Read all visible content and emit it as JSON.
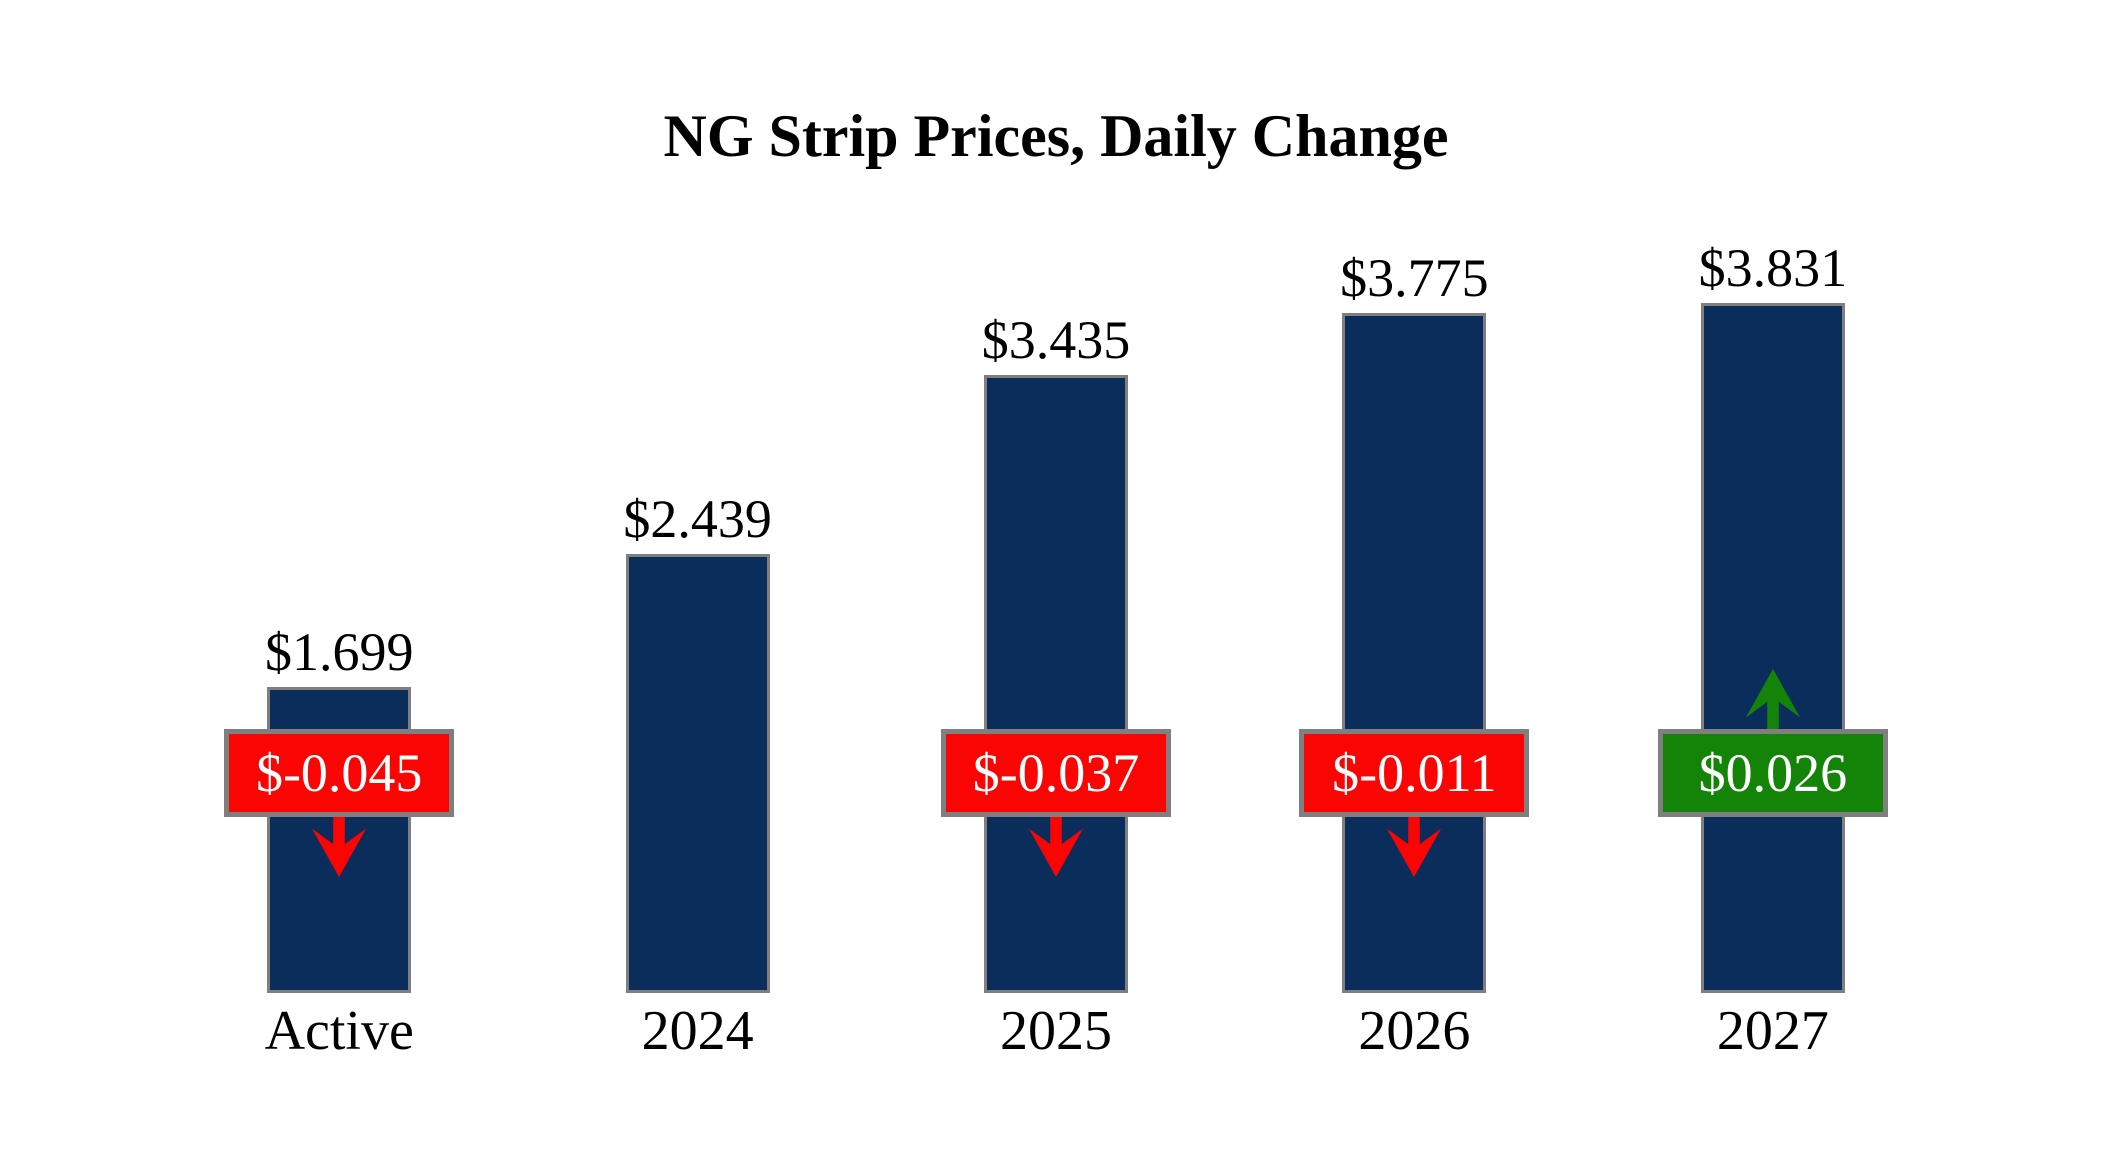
{
  "colors": {
    "bar_fill": "#0b2d5c",
    "border_gray": "#7f7f7f",
    "negative": "#fb0404",
    "positive": "#148408",
    "badge_text": "#ffffff",
    "label_text": "#000000",
    "background": "#ffffff"
  },
  "chart_data": {
    "type": "bar",
    "title": "NG Strip Prices, Daily Change",
    "categories": [
      "Active",
      "2024",
      "2025",
      "2026",
      "2027"
    ],
    "values": [
      1.699,
      2.439,
      3.435,
      3.775,
      3.831
    ],
    "value_labels": [
      "$1.699",
      "$2.439",
      "$3.435",
      "$3.775",
      "$3.831"
    ],
    "daily_changes": [
      -0.045,
      null,
      -0.037,
      -0.011,
      0.026
    ],
    "change_labels": [
      "$-0.045",
      null,
      "$-0.037",
      "$-0.011",
      "$0.026"
    ],
    "change_directions": [
      "down",
      null,
      "down",
      "down",
      "up"
    ],
    "xlabel": "",
    "ylabel": "",
    "ylim": [
      0,
      4.1
    ],
    "grid": false,
    "legend": false,
    "bar_color": "#0b2d5c",
    "negative_change_color": "#fb0404",
    "positive_change_color": "#148408"
  }
}
